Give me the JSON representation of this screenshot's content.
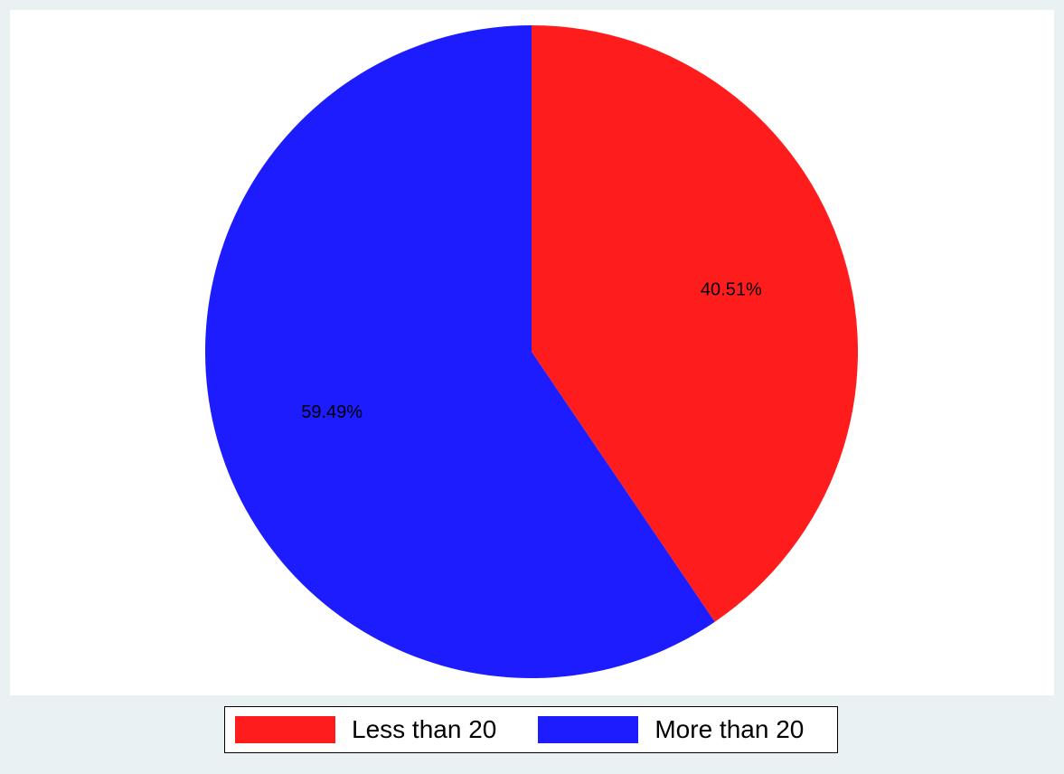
{
  "chart_data": {
    "type": "pie",
    "title": "",
    "legend_position": "bottom",
    "slices": [
      {
        "name": "Less than 20",
        "value": 40.51,
        "label": "40.51%",
        "color": "#ff1c1c"
      },
      {
        "name": "More than 20",
        "value": 59.49,
        "label": "59.49%",
        "color": "#1c1cff"
      }
    ],
    "start_angle": "12 o'clock",
    "direction": "clockwise"
  },
  "legend": {
    "items": [
      {
        "label": "Less than 20",
        "color": "#ff1c1c"
      },
      {
        "label": "More than 20",
        "color": "#1c1cff"
      }
    ]
  }
}
